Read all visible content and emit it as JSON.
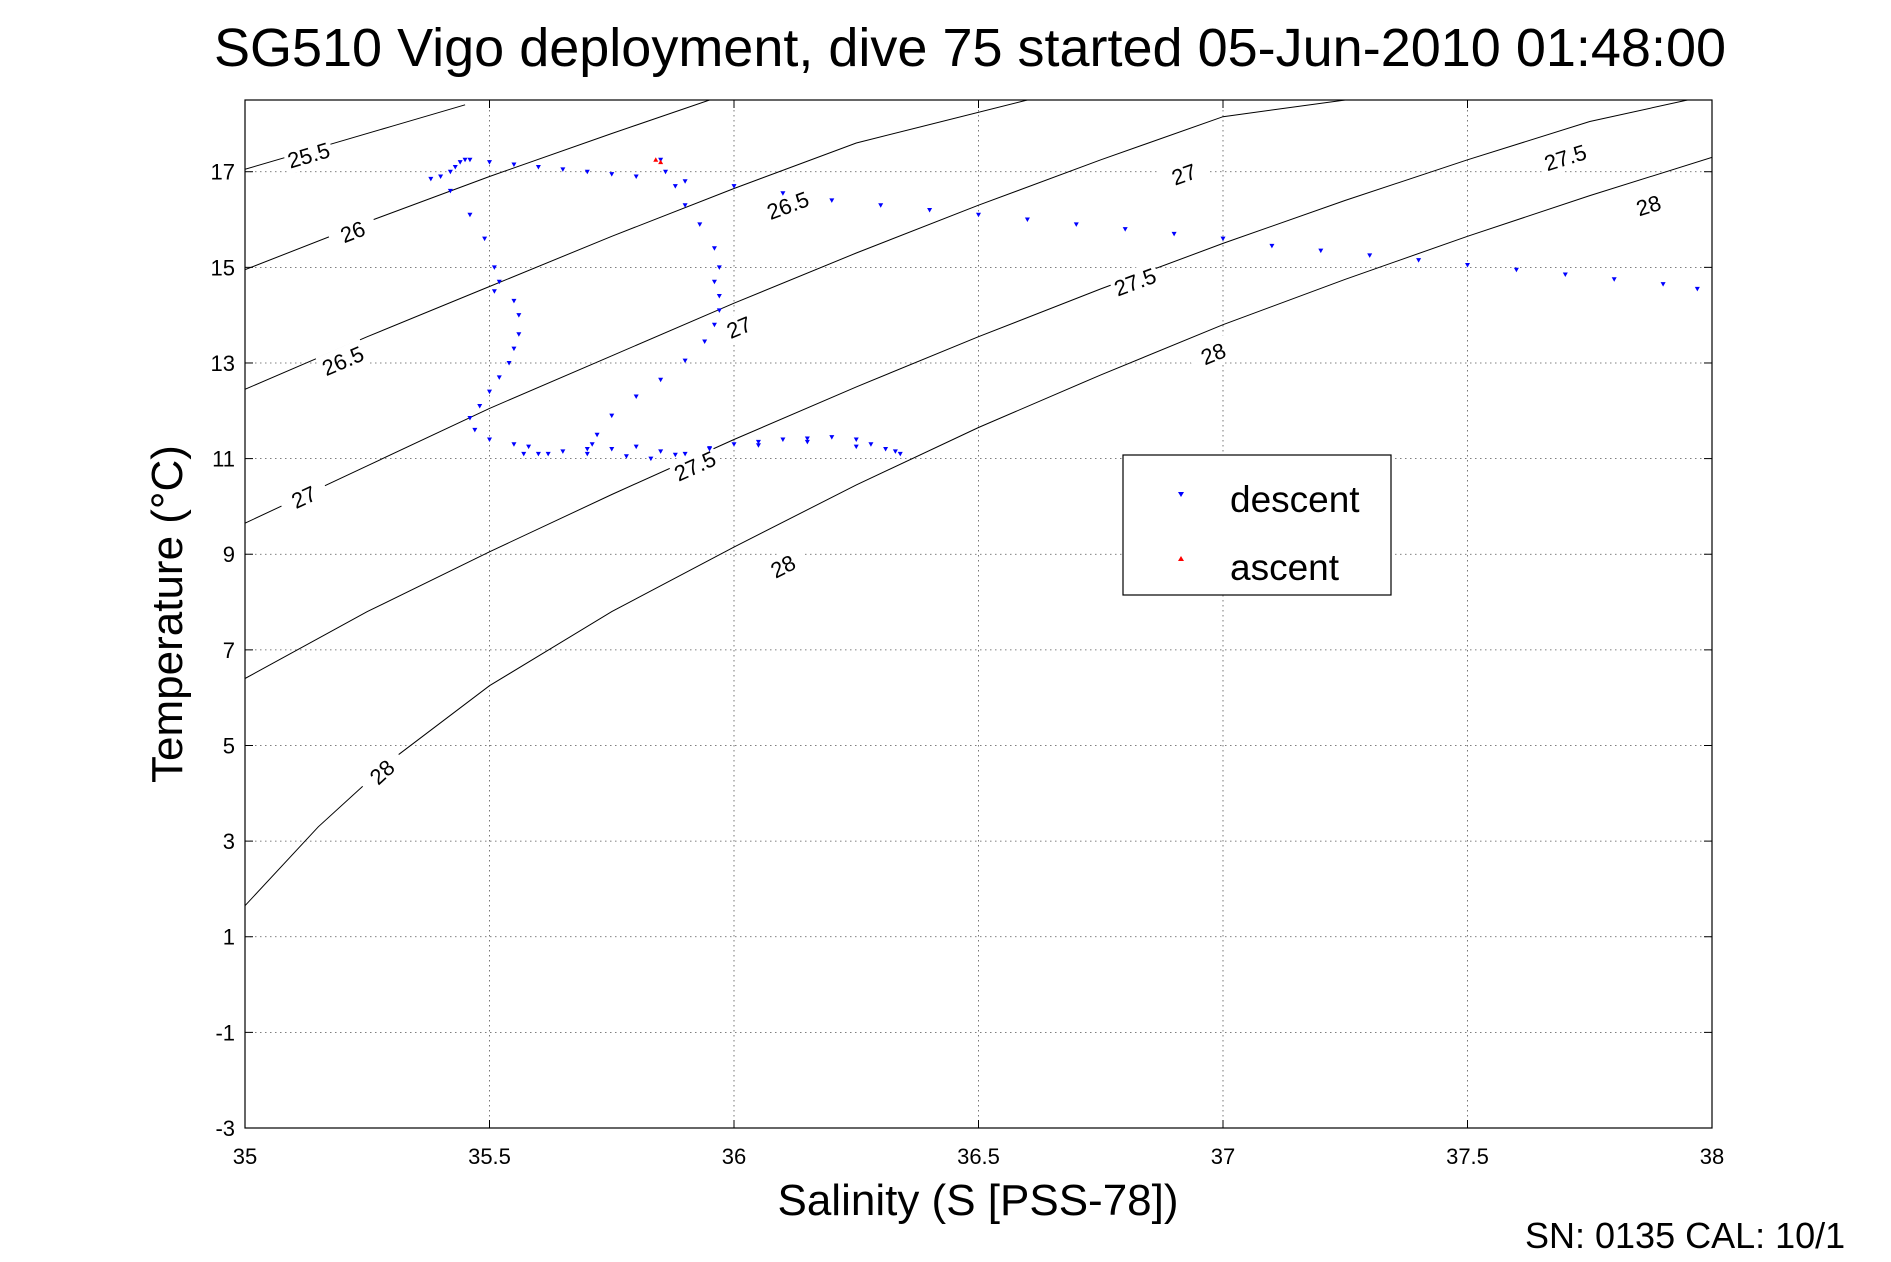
{
  "chart_data": {
    "type": "scatter",
    "title": "SG510 Vigo deployment, dive 75 started 05-Jun-2010 01:48:00",
    "xlabel": "Salinity (S [PSS-78])",
    "ylabel": "Temperature (°C)",
    "xlim": [
      35,
      38
    ],
    "ylim": [
      -3,
      18.5
    ],
    "xticks": [
      35,
      35.5,
      36,
      36.5,
      37,
      37.5,
      38
    ],
    "xtick_labels": [
      "35",
      "35.5",
      "36",
      "36.5",
      "37",
      "37.5",
      "38"
    ],
    "yticks": [
      -3,
      -1,
      1,
      3,
      5,
      7,
      9,
      11,
      13,
      15,
      17
    ],
    "ytick_labels": [
      "-3",
      "-1",
      "1",
      "3",
      "5",
      "7",
      "9",
      "11",
      "13",
      "15",
      "17"
    ],
    "grid": true,
    "legend_position": "center-right",
    "footer": "SN: 0135  CAL: 10/1",
    "density_contours": [
      {
        "value": "25.5",
        "points": [
          [
            35.0,
            17.05
          ],
          [
            35.15,
            17.5
          ],
          [
            35.3,
            17.95
          ],
          [
            35.3,
            17.95
          ],
          [
            35.45,
            18.4
          ]
        ],
        "labels": [
          [
            35.13,
            17.35
          ]
        ]
      },
      {
        "value": "26",
        "points": [
          [
            35.0,
            14.95
          ],
          [
            35.25,
            15.95
          ],
          [
            35.5,
            16.9
          ],
          [
            35.75,
            17.8
          ],
          [
            35.95,
            18.5
          ]
        ],
        "labels": [
          [
            35.22,
            15.75
          ]
        ]
      },
      {
        "value": "26.5",
        "points": [
          [
            35.0,
            12.45
          ],
          [
            35.25,
            13.55
          ],
          [
            35.5,
            14.6
          ],
          [
            35.75,
            15.65
          ],
          [
            36.0,
            16.65
          ],
          [
            36.25,
            17.6
          ],
          [
            36.6,
            18.5
          ]
        ],
        "labels": [
          [
            35.2,
            13.05
          ],
          [
            36.11,
            16.3
          ]
        ]
      },
      {
        "value": "27",
        "points": [
          [
            35.0,
            9.65
          ],
          [
            35.25,
            10.85
          ],
          [
            35.5,
            12.05
          ],
          [
            35.75,
            13.15
          ],
          [
            36.0,
            14.25
          ],
          [
            36.25,
            15.3
          ],
          [
            36.5,
            16.3
          ],
          [
            36.75,
            17.25
          ],
          [
            37.0,
            18.15
          ],
          [
            37.25,
            18.5
          ]
        ],
        "labels": [
          [
            35.12,
            10.2
          ],
          [
            36.01,
            13.75
          ],
          [
            36.92,
            16.95
          ]
        ]
      },
      {
        "value": "27.5",
        "points": [
          [
            35.0,
            6.4
          ],
          [
            35.25,
            7.8
          ],
          [
            35.5,
            9.05
          ],
          [
            35.75,
            10.25
          ],
          [
            36.0,
            11.4
          ],
          [
            36.25,
            12.5
          ],
          [
            36.5,
            13.55
          ],
          [
            36.75,
            14.55
          ],
          [
            37.0,
            15.5
          ],
          [
            37.25,
            16.4
          ],
          [
            37.5,
            17.25
          ],
          [
            37.75,
            18.05
          ],
          [
            37.95,
            18.5
          ]
        ],
        "labels": [
          [
            35.92,
            10.85
          ],
          [
            36.82,
            14.7
          ],
          [
            37.7,
            17.3
          ]
        ]
      },
      {
        "value": "28",
        "points": [
          [
            35.0,
            1.65
          ],
          [
            35.15,
            3.3
          ],
          [
            35.3,
            4.7
          ],
          [
            35.5,
            6.25
          ],
          [
            35.75,
            7.8
          ],
          [
            36.0,
            9.15
          ],
          [
            36.25,
            10.45
          ],
          [
            36.5,
            11.65
          ],
          [
            36.75,
            12.75
          ],
          [
            37.0,
            13.8
          ],
          [
            37.25,
            14.75
          ],
          [
            37.5,
            15.65
          ],
          [
            37.75,
            16.5
          ],
          [
            38.0,
            17.3
          ]
        ],
        "labels": [
          [
            35.28,
            4.45
          ],
          [
            36.1,
            8.75
          ],
          [
            36.98,
            13.2
          ],
          [
            37.87,
            16.3
          ]
        ]
      }
    ],
    "series": [
      {
        "name": "descent",
        "color": "#0000ff",
        "points": [
          [
            35.38,
            16.85
          ],
          [
            35.4,
            16.9
          ],
          [
            35.42,
            17.0
          ],
          [
            35.43,
            17.1
          ],
          [
            35.44,
            17.2
          ],
          [
            35.45,
            17.25
          ],
          [
            35.46,
            17.25
          ],
          [
            35.42,
            16.6
          ],
          [
            35.46,
            16.1
          ],
          [
            35.49,
            15.6
          ],
          [
            35.51,
            15.0
          ],
          [
            35.52,
            14.7
          ],
          [
            35.51,
            14.5
          ],
          [
            35.55,
            14.3
          ],
          [
            35.56,
            14.0
          ],
          [
            35.56,
            13.6
          ],
          [
            35.55,
            13.3
          ],
          [
            35.54,
            13.0
          ],
          [
            35.52,
            12.7
          ],
          [
            35.5,
            12.4
          ],
          [
            35.48,
            12.1
          ],
          [
            35.46,
            11.85
          ],
          [
            35.47,
            11.6
          ],
          [
            35.5,
            11.4
          ],
          [
            35.55,
            11.3
          ],
          [
            35.58,
            11.25
          ],
          [
            35.57,
            11.1
          ],
          [
            35.6,
            11.1
          ],
          [
            35.65,
            11.15
          ],
          [
            35.7,
            11.2
          ],
          [
            35.71,
            11.3
          ],
          [
            35.72,
            11.5
          ],
          [
            35.75,
            11.9
          ],
          [
            35.8,
            12.3
          ],
          [
            35.85,
            12.65
          ],
          [
            35.9,
            13.05
          ],
          [
            35.94,
            13.45
          ],
          [
            35.96,
            13.8
          ],
          [
            35.97,
            14.1
          ],
          [
            35.97,
            14.4
          ],
          [
            35.96,
            14.7
          ],
          [
            35.97,
            15.0
          ],
          [
            35.96,
            15.4
          ],
          [
            35.93,
            15.9
          ],
          [
            35.9,
            16.3
          ],
          [
            35.88,
            16.7
          ],
          [
            35.86,
            17.0
          ],
          [
            35.85,
            17.25
          ],
          [
            35.75,
            11.2
          ],
          [
            35.8,
            11.25
          ],
          [
            35.85,
            11.15
          ],
          [
            35.9,
            11.1
          ],
          [
            35.95,
            11.2
          ],
          [
            36.0,
            11.3
          ],
          [
            36.05,
            11.35
          ],
          [
            36.1,
            11.4
          ],
          [
            36.15,
            11.42
          ],
          [
            36.2,
            11.45
          ],
          [
            36.25,
            11.4
          ],
          [
            36.28,
            11.3
          ],
          [
            36.31,
            11.2
          ],
          [
            36.33,
            11.15
          ],
          [
            36.34,
            11.1
          ],
          [
            36.25,
            11.25
          ],
          [
            36.15,
            11.35
          ],
          [
            36.05,
            11.28
          ],
          [
            35.95,
            11.22
          ],
          [
            35.88,
            11.08
          ],
          [
            35.83,
            11.0
          ],
          [
            35.78,
            11.05
          ],
          [
            35.7,
            11.1
          ],
          [
            35.62,
            11.1
          ],
          [
            35.5,
            17.2
          ],
          [
            35.55,
            17.15
          ],
          [
            35.6,
            17.1
          ],
          [
            35.65,
            17.05
          ],
          [
            35.7,
            17.0
          ],
          [
            35.75,
            16.95
          ],
          [
            35.8,
            16.9
          ],
          [
            35.9,
            16.8
          ],
          [
            36.0,
            16.7
          ],
          [
            36.1,
            16.55
          ],
          [
            36.2,
            16.4
          ],
          [
            36.3,
            16.3
          ],
          [
            36.4,
            16.2
          ],
          [
            36.5,
            16.1
          ],
          [
            36.6,
            16.0
          ],
          [
            36.7,
            15.9
          ],
          [
            36.8,
            15.8
          ],
          [
            36.9,
            15.7
          ],
          [
            37.0,
            15.6
          ],
          [
            37.1,
            15.45
          ],
          [
            37.2,
            15.35
          ],
          [
            37.3,
            15.25
          ],
          [
            37.4,
            15.15
          ],
          [
            37.5,
            15.05
          ],
          [
            37.6,
            14.95
          ],
          [
            37.7,
            14.85
          ],
          [
            37.8,
            14.75
          ],
          [
            37.9,
            14.65
          ],
          [
            37.97,
            14.55
          ]
        ]
      },
      {
        "name": "ascent",
        "color": "#ff0000",
        "points": [
          [
            35.84,
            17.25
          ],
          [
            35.85,
            17.2
          ]
        ]
      }
    ]
  }
}
